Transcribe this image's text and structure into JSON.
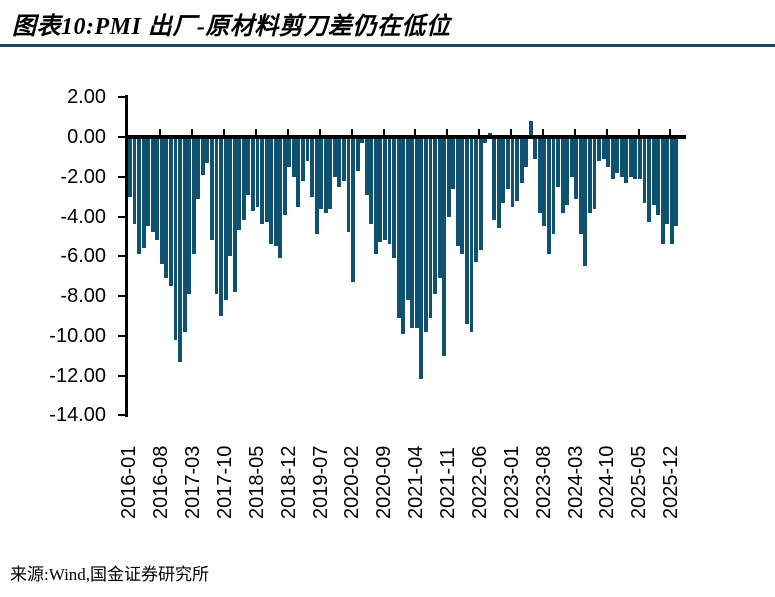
{
  "header": {
    "title": "图表10:PMI 出厂-原材料剪刀差仍在低位"
  },
  "footer": {
    "source": "来源:Wind,国金证券研究所"
  },
  "colors": {
    "bar": "#0E5170",
    "title_rule": "#1B4562",
    "axis": "#000000",
    "background": "#FFFFFF"
  },
  "chart_data": {
    "type": "bar",
    "title": "PMI 出厂-原材料剪刀差",
    "xlabel": "",
    "ylabel": "",
    "ylim": [
      -14,
      2
    ],
    "ytick_step": 2,
    "ytick_labels": [
      "2.00",
      "0.00",
      "-2.00",
      "-4.00",
      "-6.00",
      "-8.00",
      "-10.00",
      "-12.00",
      "-14.00"
    ],
    "grid": false,
    "legend": null,
    "bar_color": "#0E5170",
    "x_label_interval": 7,
    "x_tick_labels": [
      "2016-01",
      "2016-08",
      "2017-03",
      "2017-10",
      "2018-05",
      "2018-12",
      "2019-07",
      "2020-02",
      "2020-09",
      "2021-04",
      "2021-11",
      "2022-06",
      "2023-01",
      "2023-08",
      "2024-03",
      "2024-10",
      "2025-05",
      "2025-12"
    ],
    "x": [
      "2016-01",
      "2016-02",
      "2016-03",
      "2016-04",
      "2016-05",
      "2016-06",
      "2016-07",
      "2016-08",
      "2016-09",
      "2016-10",
      "2016-11",
      "2016-12",
      "2017-01",
      "2017-02",
      "2017-03",
      "2017-04",
      "2017-05",
      "2017-06",
      "2017-07",
      "2017-08",
      "2017-09",
      "2017-10",
      "2017-11",
      "2017-12",
      "2018-01",
      "2018-02",
      "2018-03",
      "2018-04",
      "2018-05",
      "2018-06",
      "2018-07",
      "2018-08",
      "2018-09",
      "2018-10",
      "2018-11",
      "2018-12",
      "2019-01",
      "2019-02",
      "2019-03",
      "2019-04",
      "2019-05",
      "2019-06",
      "2019-07",
      "2019-08",
      "2019-09",
      "2019-10",
      "2019-11",
      "2019-12",
      "2020-01",
      "2020-02",
      "2020-03",
      "2020-04",
      "2020-05",
      "2020-06",
      "2020-07",
      "2020-08",
      "2020-09",
      "2020-10",
      "2020-11",
      "2020-12",
      "2021-01",
      "2021-02",
      "2021-03",
      "2021-04",
      "2021-05",
      "2021-06",
      "2021-07",
      "2021-08",
      "2021-09",
      "2021-10",
      "2021-11",
      "2021-12",
      "2022-01",
      "2022-02",
      "2022-03",
      "2022-04",
      "2022-05",
      "2022-06",
      "2022-07",
      "2022-08",
      "2022-09",
      "2022-10",
      "2022-11",
      "2022-12",
      "2023-01",
      "2023-02",
      "2023-03",
      "2023-04",
      "2023-05",
      "2023-06",
      "2023-07",
      "2023-08",
      "2023-09",
      "2023-10",
      "2023-11",
      "2023-12",
      "2024-01",
      "2024-02",
      "2024-03",
      "2024-04",
      "2024-05",
      "2024-06",
      "2024-07",
      "2024-08",
      "2024-09",
      "2024-10",
      "2024-11",
      "2024-12",
      "2025-01",
      "2025-02",
      "2025-03",
      "2025-04",
      "2025-05",
      "2025-06",
      "2025-07",
      "2025-08",
      "2025-09",
      "2025-10",
      "2025-11",
      "2025-12",
      "2026-01"
    ],
    "values": [
      -3.0,
      -4.4,
      -5.9,
      -5.6,
      -4.5,
      -4.8,
      -5.2,
      -6.4,
      -7.1,
      -7.5,
      -10.2,
      -11.3,
      -9.8,
      -7.9,
      -5.9,
      -3.1,
      -1.9,
      -1.3,
      -5.2,
      -7.9,
      -9.0,
      -8.2,
      -6.0,
      -7.8,
      -4.7,
      -4.2,
      -2.9,
      -3.7,
      -3.5,
      -4.4,
      -4.3,
      -5.4,
      -5.5,
      -6.1,
      -3.9,
      -1.5,
      -2.0,
      -3.5,
      -2.2,
      -1.2,
      -3.0,
      -4.9,
      -3.6,
      -3.8,
      -3.6,
      -2.0,
      -2.5,
      -2.2,
      -4.8,
      -7.3,
      -1.7,
      -0.3,
      -2.9,
      -4.4,
      -5.9,
      -5.3,
      -5.2,
      -5.4,
      -6.1,
      -9.1,
      -9.9,
      -8.2,
      -9.6,
      -9.6,
      -12.2,
      -9.8,
      -9.1,
      -7.9,
      -7.1,
      -11.0,
      -4.0,
      -2.6,
      -5.5,
      -5.9,
      -9.4,
      -9.8,
      -6.3,
      -5.7,
      -0.3,
      0.2,
      -4.2,
      -4.6,
      -3.3,
      -2.6,
      -3.5,
      -3.2,
      -2.3,
      -1.5,
      0.8,
      -1.1,
      -3.8,
      -4.5,
      -5.9,
      -4.9,
      -2.5,
      -3.8,
      -3.4,
      -2.0,
      -3.1,
      -4.9,
      -6.5,
      -3.8,
      -3.6,
      -1.2,
      -1.1,
      -1.5,
      -2.1,
      -1.8,
      -2.0,
      -2.3,
      -2.0,
      -2.1,
      -2.1,
      -3.3,
      -4.3,
      -3.4,
      -3.9,
      -5.4,
      -4.4,
      -5.4,
      -4.5
    ]
  }
}
